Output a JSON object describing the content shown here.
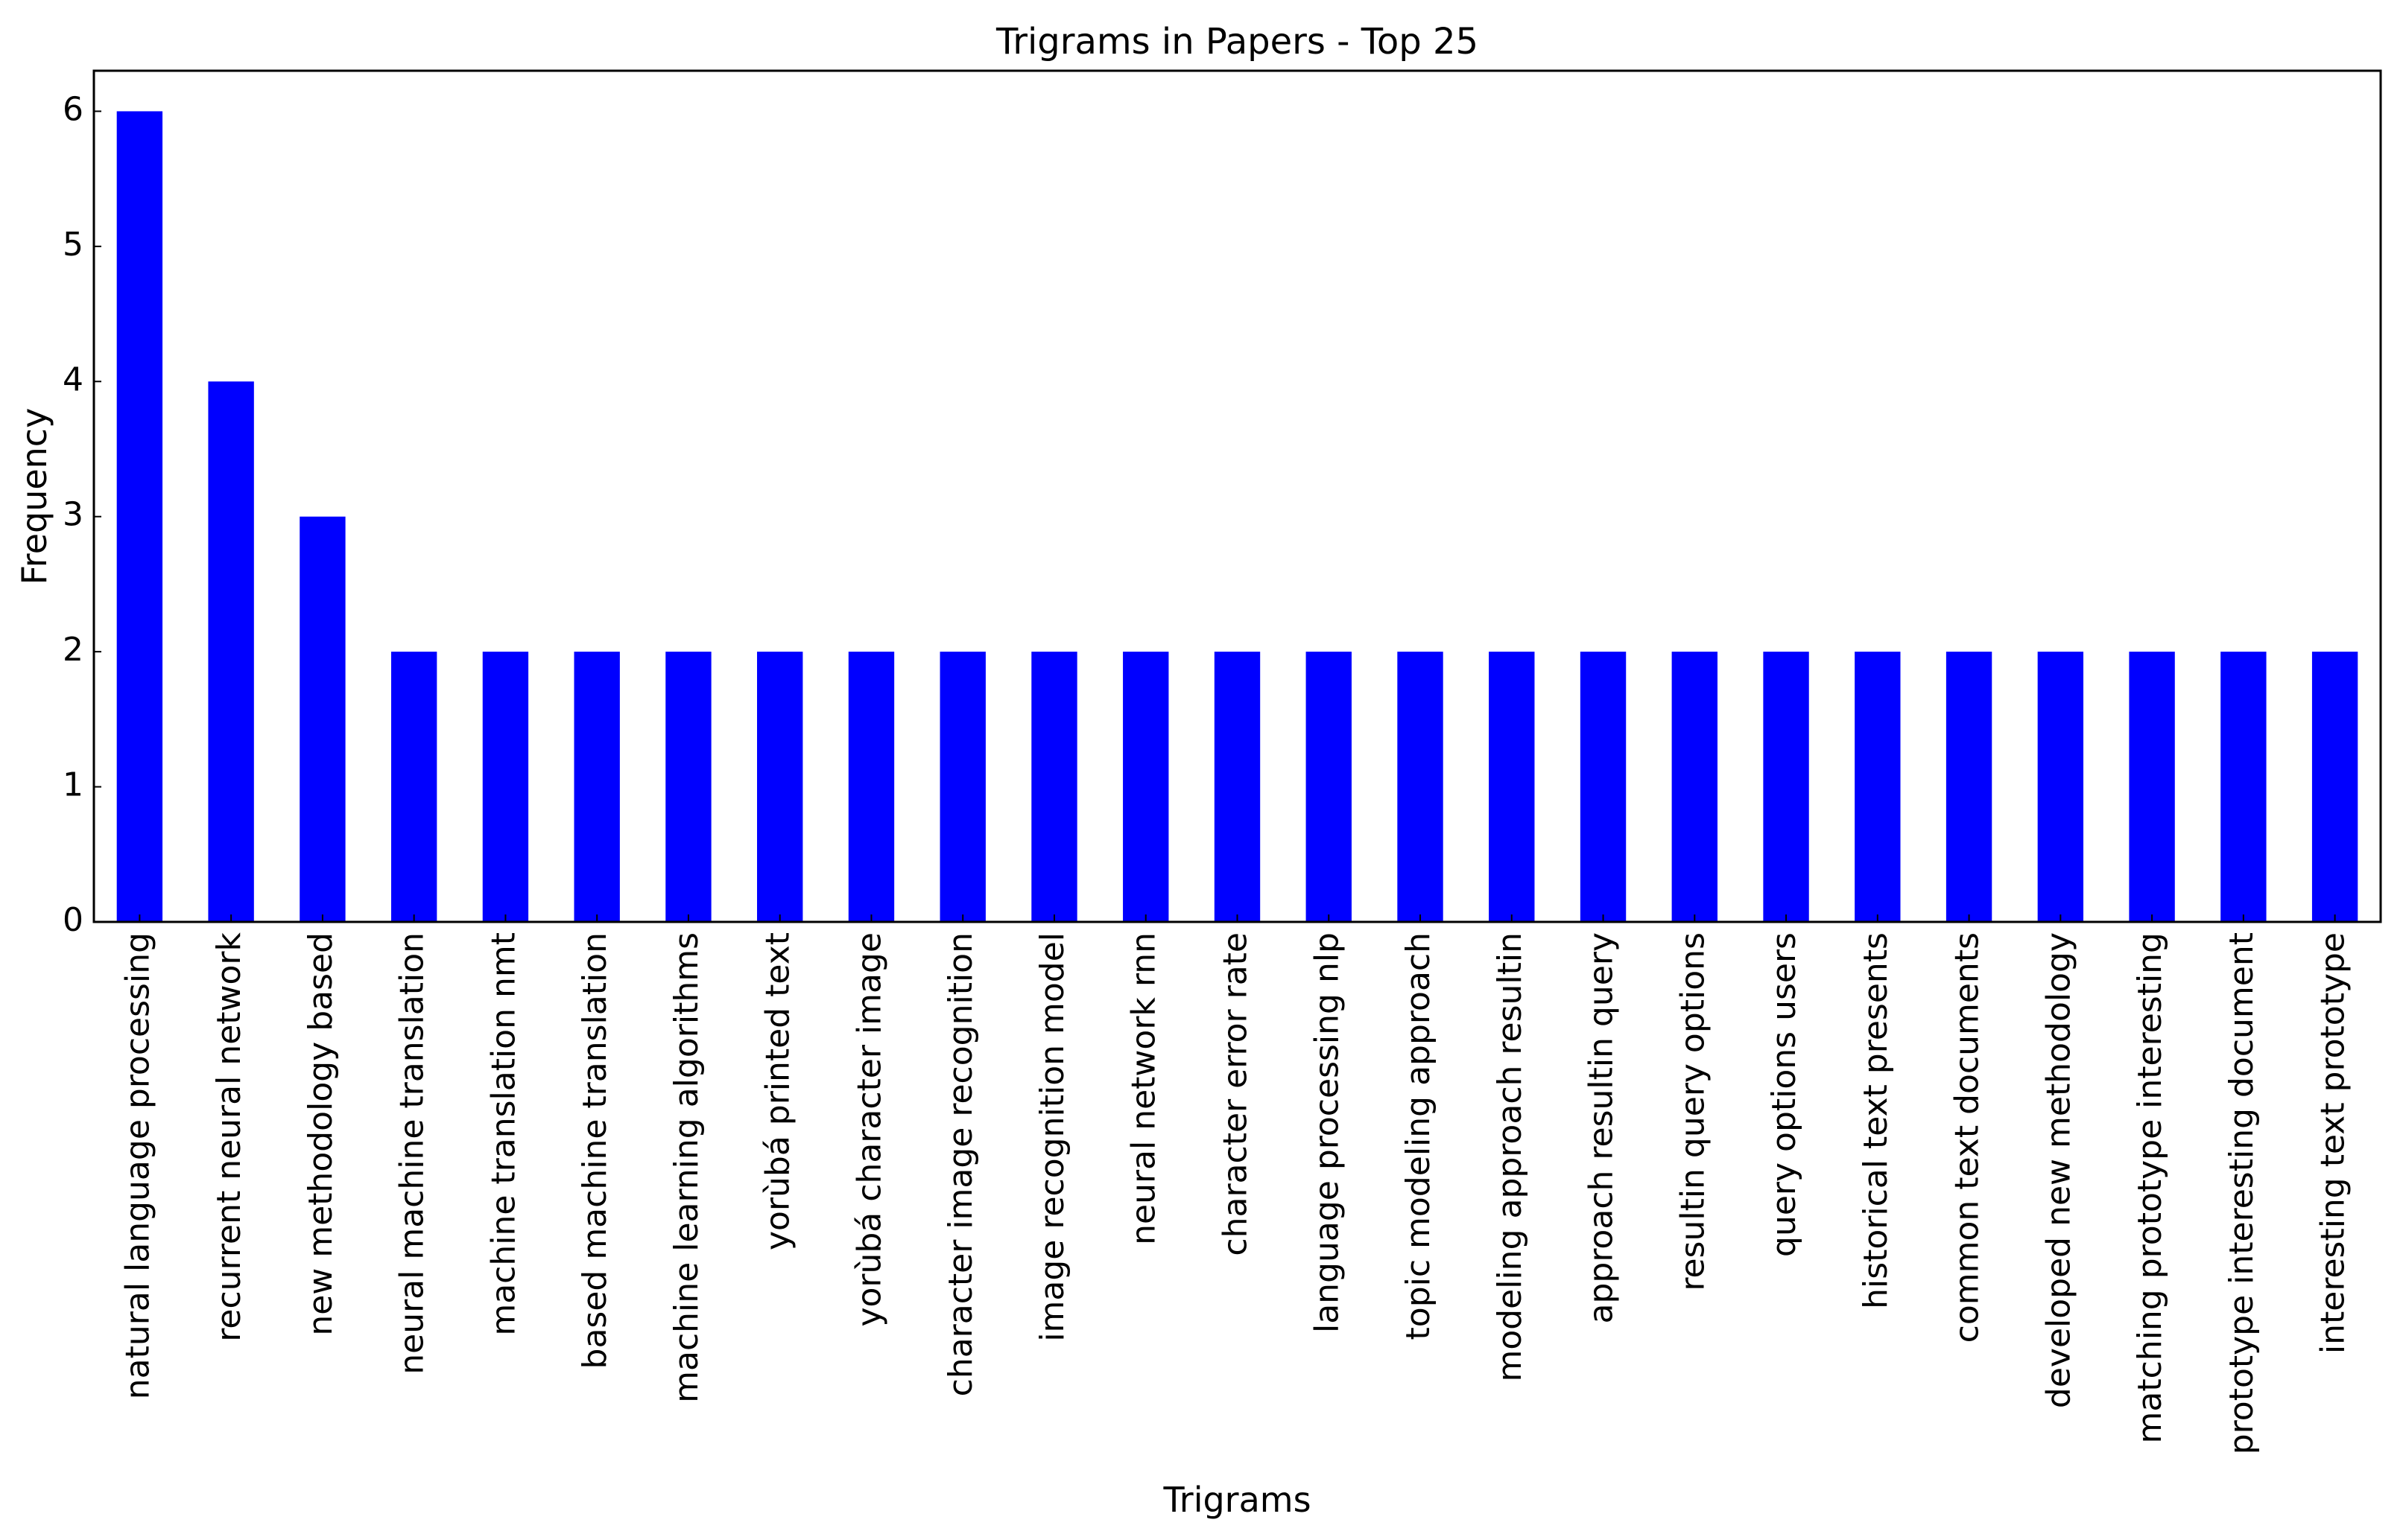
{
  "chart_data": {
    "type": "bar",
    "title": "Trigrams in Papers - Top 25",
    "xlabel": "Trigrams",
    "ylabel": "Frequency",
    "ylim": [
      0,
      6.3
    ],
    "yticks": [
      "0",
      "1",
      "2",
      "3",
      "4",
      "5",
      "6"
    ],
    "grid": false,
    "legend": "none",
    "bar_color": "#0000ff",
    "categories": [
      "natural language processing",
      "recurrent neural network",
      "new methodology based",
      "neural machine translation",
      "machine translation nmt",
      "based machine translation",
      "machine learning algorithms",
      "yorùbá printed text",
      "yorùbá character image",
      "character image recognition",
      "image recognition model",
      "neural network rnn",
      "character error rate",
      "language processing nlp",
      "topic modeling approach",
      "modeling approach resultin",
      "approach resultin query",
      "resultin query options",
      "query options users",
      "historical text presents",
      "common text documents",
      "developed new methodology",
      "matching prototype interesting",
      "prototype interesting document",
      "interesting text prototype"
    ],
    "values": [
      6,
      4,
      3,
      2,
      2,
      2,
      2,
      2,
      2,
      2,
      2,
      2,
      2,
      2,
      2,
      2,
      2,
      2,
      2,
      2,
      2,
      2,
      2,
      2,
      2
    ]
  }
}
